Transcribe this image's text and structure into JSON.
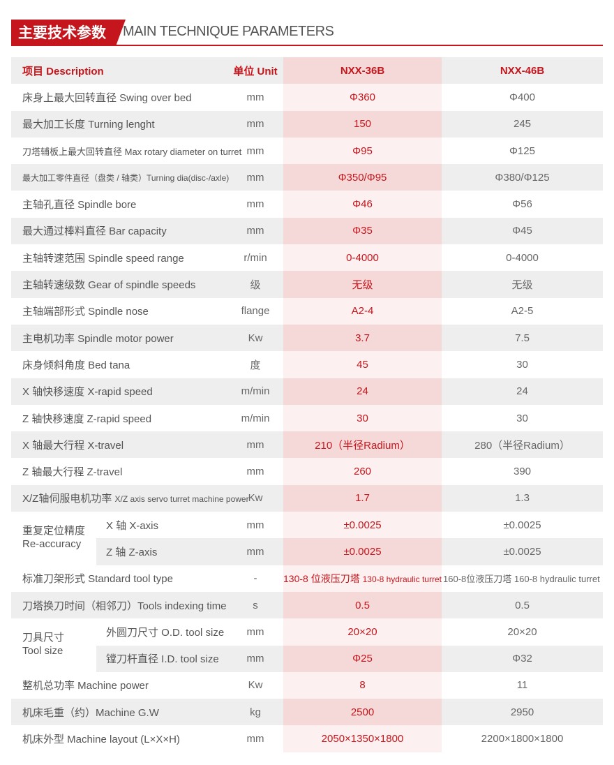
{
  "title": {
    "cn": "主要技术参数",
    "en": "MAIN TECHNIQUE PARAMETERS"
  },
  "table": {
    "headers": {
      "description": "项目 Description",
      "unit": "单位 Unit",
      "model1": "NXX-36B",
      "model2": "NXX-46B"
    },
    "rows": [
      {
        "desc": "床身上最大回转直径 Swing over bed",
        "unit": "mm",
        "m1": "Φ360",
        "m2": "Φ400"
      },
      {
        "desc": "最大加工长度 Turning lenght",
        "unit": "mm",
        "m1": "150",
        "m2": "245"
      },
      {
        "desc": "刀塔辅板上最大回转直径 Max rotary diameter on turret",
        "unit": "mm",
        "m1": "Φ95",
        "m2": "Φ125"
      },
      {
        "desc": "最大加工零件直径（盘类 / 轴类）Turning dia(disc-/axle)",
        "unit": "mm",
        "m1": "Φ350/Φ95",
        "m2": "Φ380/Φ125"
      },
      {
        "desc": "主轴孔直径 Spindle bore",
        "unit": "mm",
        "m1": "Φ46",
        "m2": "Φ56"
      },
      {
        "desc": "最大通过棒料直径 Bar capacity",
        "unit": "mm",
        "m1": "Φ35",
        "m2": "Φ45"
      },
      {
        "desc": "主轴转速范围 Spindle speed range",
        "unit": "r/min",
        "m1": "0-4000",
        "m2": "0-4000"
      },
      {
        "desc": "主轴转速级数 Gear of spindle speeds",
        "unit": "级",
        "m1": "无级",
        "m2": "无级"
      },
      {
        "desc": "主轴端部形式 Spindle nose",
        "unit": "flange",
        "m1": "A2-4",
        "m2": "A2-5"
      },
      {
        "desc": "主电机功率 Spindle motor power",
        "unit": "Kw",
        "m1": "3.7",
        "m2": "7.5"
      },
      {
        "desc": "床身倾斜角度 Bed tana",
        "unit": "度",
        "m1": "45",
        "m2": "30"
      },
      {
        "desc": "X 轴快移速度 X-rapid speed",
        "unit": "m/min",
        "m1": "24",
        "m2": "24"
      },
      {
        "desc": "Z 轴快移速度 Z-rapid speed",
        "unit": "m/min",
        "m1": "30",
        "m2": "30"
      },
      {
        "desc": "X 轴最大行程 X-travel",
        "unit": "mm",
        "m1": "210（半径Radium）",
        "m2": "280（半径Radium）"
      },
      {
        "desc": "Z 轴最大行程 Z-travel",
        "unit": "mm",
        "m1": "260",
        "m2": "390"
      },
      {
        "desc_cn": "X/Z轴伺服电机功率",
        "desc_en": "X/Z axis servo turret machine power",
        "unit": "Kw",
        "m1": "1.7",
        "m2": "1.3"
      }
    ],
    "accuracy": {
      "label_cn": "重复定位精度",
      "label_en": "Re-accuracy",
      "rows": [
        {
          "desc": "X 轴 X-axis",
          "unit": "mm",
          "m1": "±0.0025",
          "m2": "±0.0025"
        },
        {
          "desc": "Z 轴 Z-axis",
          "unit": "mm",
          "m1": "±0.0025",
          "m2": "±0.0025"
        }
      ]
    },
    "tool_type": {
      "desc": "标准刀架形式 Standard tool type",
      "unit": "-",
      "m1_cn": "130-8 位液压刀塔",
      "m1_en": "130-8 hydraulic turret",
      "m2": "160-8位液压刀塔 160-8 hydraulic turret"
    },
    "indexing": {
      "desc": "刀塔换刀时间（相邻刀）Tools indexing time",
      "unit": "s",
      "m1": "0.5",
      "m2": "0.5"
    },
    "tool_size": {
      "label_cn": "刀具尺寸",
      "label_en": "Tool size",
      "rows": [
        {
          "desc": "外圆刀尺寸 O.D. tool size",
          "unit": "mm",
          "m1": "20×20",
          "m2": "20×20"
        },
        {
          "desc": "镗刀杆直径 I.D. tool size",
          "unit": "mm",
          "m1": "Φ25",
          "m2": "Φ32"
        }
      ]
    },
    "tail_rows": [
      {
        "desc": "整机总功率 Machine power",
        "unit": "Kw",
        "m1": "8",
        "m2": "11"
      },
      {
        "desc": "机床毛重（约）Machine G.W",
        "unit": "kg",
        "m1": "2500",
        "m2": "2950"
      },
      {
        "desc": "机床外型 Machine layout (L×X×H)",
        "unit": "mm",
        "m1": "2050×1350×1800",
        "m2": "2200×1800×1800"
      }
    ]
  }
}
